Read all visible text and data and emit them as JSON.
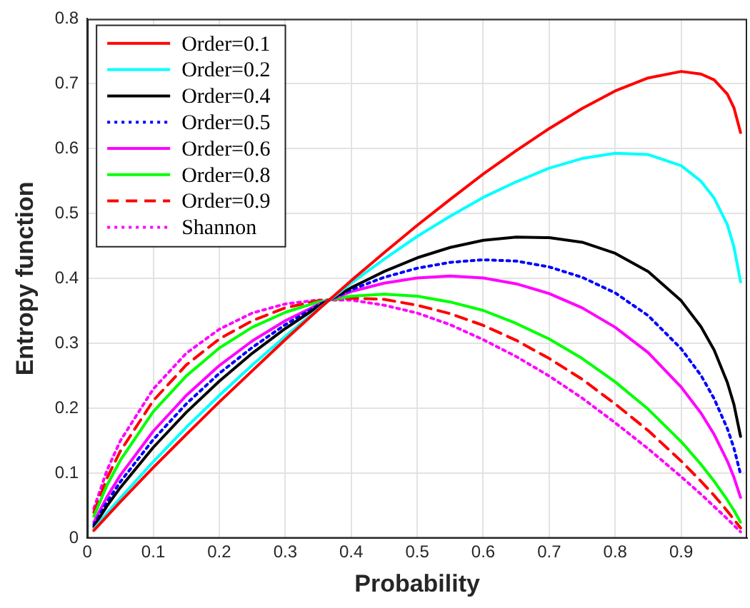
{
  "chart_data": {
    "type": "line",
    "xlabel": "Probability",
    "ylabel": "Entropy function",
    "x": [
      0.01,
      0.03,
      0.05,
      0.1,
      0.15,
      0.2,
      0.25,
      0.3,
      0.35,
      0.4,
      0.45,
      0.5,
      0.55,
      0.6,
      0.65,
      0.7,
      0.75,
      0.8,
      0.85,
      0.9,
      0.93,
      0.95,
      0.97,
      0.98,
      0.99
    ],
    "xlim": [
      0,
      1
    ],
    "xticks": [
      0,
      0.1,
      0.2,
      0.3,
      0.4,
      0.5,
      0.6,
      0.7,
      0.8,
      0.9
    ],
    "ylim": [
      0,
      0.8
    ],
    "yticks": [
      0,
      0.1,
      0.2,
      0.3,
      0.4,
      0.5,
      0.6,
      0.7,
      0.8
    ],
    "grid": true,
    "legend": "top left",
    "marker": "none",
    "series": [
      {
        "name": "Order=0.1",
        "color": "#ff0000",
        "line_style": "solid",
        "values": [
          0.012,
          0.034,
          0.056,
          0.109,
          0.16,
          0.21,
          0.258,
          0.306,
          0.352,
          0.397,
          0.44,
          0.482,
          0.522,
          0.561,
          0.597,
          0.631,
          0.662,
          0.689,
          0.709,
          0.719,
          0.715,
          0.706,
          0.684,
          0.663,
          0.625
        ]
      },
      {
        "name": "Order=0.2",
        "color": "#00ffff",
        "line_style": "solid",
        "values": [
          0.014,
          0.039,
          0.062,
          0.118,
          0.171,
          0.22,
          0.267,
          0.311,
          0.353,
          0.393,
          0.43,
          0.465,
          0.496,
          0.525,
          0.549,
          0.57,
          0.585,
          0.593,
          0.591,
          0.574,
          0.55,
          0.524,
          0.483,
          0.449,
          0.395
        ]
      },
      {
        "name": "Order=0.4",
        "color": "#000000",
        "line_style": "solid",
        "values": [
          0.018,
          0.05,
          0.078,
          0.14,
          0.194,
          0.242,
          0.285,
          0.323,
          0.357,
          0.386,
          0.411,
          0.432,
          0.448,
          0.459,
          0.464,
          0.463,
          0.456,
          0.439,
          0.411,
          0.366,
          0.326,
          0.29,
          0.24,
          0.206,
          0.157
        ]
      },
      {
        "name": "Order=0.5",
        "color": "#0000ff",
        "line_style": "dotted",
        "values": [
          0.021,
          0.056,
          0.087,
          0.152,
          0.207,
          0.254,
          0.294,
          0.329,
          0.359,
          0.383,
          0.402,
          0.416,
          0.425,
          0.429,
          0.427,
          0.418,
          0.402,
          0.378,
          0.343,
          0.292,
          0.251,
          0.215,
          0.169,
          0.139,
          0.099
        ]
      },
      {
        "name": "Order=0.6",
        "color": "#ff00ff",
        "line_style": "solid",
        "values": [
          0.025,
          0.064,
          0.097,
          0.165,
          0.22,
          0.266,
          0.304,
          0.335,
          0.36,
          0.38,
          0.393,
          0.401,
          0.404,
          0.401,
          0.392,
          0.377,
          0.355,
          0.325,
          0.286,
          0.233,
          0.193,
          0.16,
          0.119,
          0.094,
          0.063
        ]
      },
      {
        "name": "Order=0.8",
        "color": "#00ff00",
        "line_style": "solid",
        "values": [
          0.034,
          0.082,
          0.12,
          0.195,
          0.25,
          0.293,
          0.325,
          0.348,
          0.364,
          0.373,
          0.376,
          0.373,
          0.364,
          0.351,
          0.331,
          0.307,
          0.277,
          0.241,
          0.199,
          0.149,
          0.114,
          0.088,
          0.059,
          0.043,
          0.025
        ]
      },
      {
        "name": "Order=0.9",
        "color": "#ff0000",
        "line_style": "dashed",
        "values": [
          0.04,
          0.093,
          0.134,
          0.212,
          0.267,
          0.307,
          0.335,
          0.355,
          0.366,
          0.37,
          0.368,
          0.359,
          0.346,
          0.328,
          0.305,
          0.277,
          0.245,
          0.207,
          0.166,
          0.119,
          0.088,
          0.066,
          0.042,
          0.029,
          0.016
        ]
      },
      {
        "name": "Shannon",
        "color": "#ff00ff",
        "line_style": "dotted",
        "values": [
          0.046,
          0.105,
          0.15,
          0.23,
          0.285,
          0.322,
          0.347,
          0.361,
          0.367,
          0.367,
          0.359,
          0.347,
          0.329,
          0.306,
          0.28,
          0.25,
          0.216,
          0.178,
          0.138,
          0.095,
          0.068,
          0.049,
          0.03,
          0.02,
          0.01
        ]
      }
    ]
  }
}
